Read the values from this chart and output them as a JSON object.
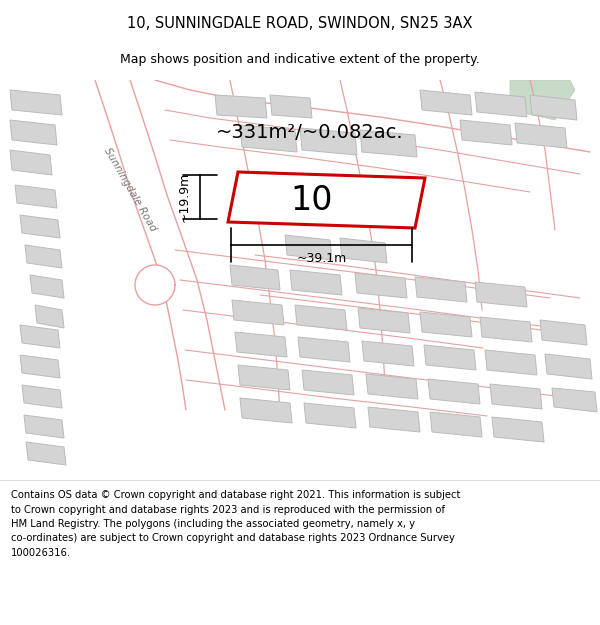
{
  "title": "10, SUNNINGDALE ROAD, SWINDON, SN25 3AX",
  "subtitle": "Map shows position and indicative extent of the property.",
  "footer_text": "Contains OS data © Crown copyright and database right 2021. This information is subject\nto Crown copyright and database rights 2023 and is reproduced with the permission of\nHM Land Registry. The polygons (including the associated geometry, namely x, y\nco-ordinates) are subject to Crown copyright and database rights 2023 Ordnance Survey\n100026316.",
  "map_bg": "#eeece8",
  "road_fill": "#ffffff",
  "road_edge": "#e8a0a0",
  "building_fc": "#d4d4d4",
  "building_ec": "#bbbbbb",
  "highlight_color": "#cc0000",
  "green_fc": "#c8dbc8",
  "green_ec": "#b8ccb8",
  "area_text": "~331m²/~0.082ac.",
  "property_label": "10",
  "dim_width": "~39.1m",
  "dim_height": "~19.9m",
  "road_label": "Sunningdale Road",
  "title_fontsize": 10.5,
  "subtitle_fontsize": 9,
  "footer_fontsize": 7.2,
  "area_fontsize": 14,
  "label_fontsize": 24,
  "dim_fontsize": 9
}
